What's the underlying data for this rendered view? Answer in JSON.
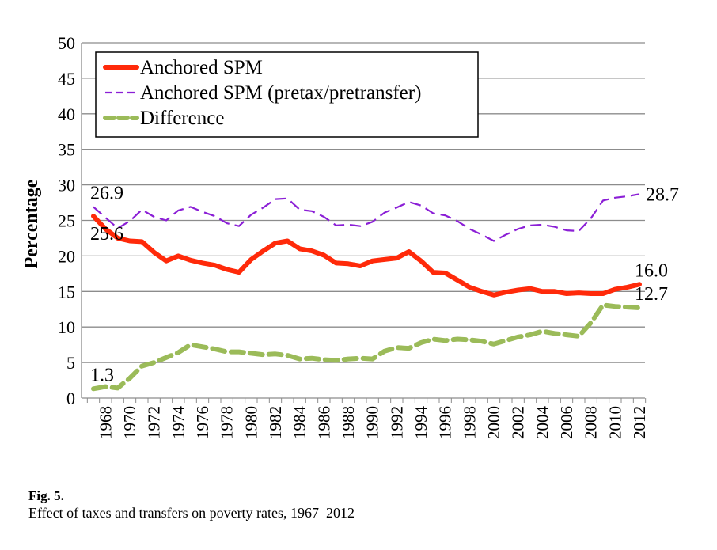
{
  "chart_data": {
    "type": "line",
    "title": "",
    "xlabel": "",
    "ylabel": "Percentage",
    "ylim": [
      0,
      50
    ],
    "yticks": [
      0,
      5,
      10,
      15,
      20,
      25,
      30,
      35,
      40,
      45,
      50
    ],
    "x": [
      1967,
      1968,
      1969,
      1970,
      1971,
      1972,
      1973,
      1974,
      1975,
      1976,
      1977,
      1978,
      1979,
      1980,
      1981,
      1982,
      1983,
      1984,
      1985,
      1986,
      1987,
      1988,
      1989,
      1990,
      1991,
      1992,
      1993,
      1994,
      1995,
      1996,
      1997,
      1998,
      1999,
      2000,
      2001,
      2002,
      2003,
      2004,
      2005,
      2006,
      2007,
      2008,
      2009,
      2010,
      2011,
      2012
    ],
    "xticks": [
      "1968",
      "1970",
      "1972",
      "1974",
      "1976",
      "1978",
      "1980",
      "1982",
      "1984",
      "1986",
      "1988",
      "1990",
      "1992",
      "1994",
      "1996",
      "1998",
      "2000",
      "2002",
      "2004",
      "2006",
      "2008",
      "2010",
      "2012"
    ],
    "grid": true,
    "legend_position": "top-left",
    "series": [
      {
        "name": "Anchored SPM",
        "color": "#ff2a0a",
        "style": "solid",
        "values": [
          25.6,
          23.8,
          22.5,
          22.1,
          22.0,
          20.5,
          19.3,
          20.0,
          19.4,
          19.0,
          18.7,
          18.1,
          17.7,
          19.5,
          20.7,
          21.8,
          22.1,
          21.0,
          20.7,
          20.1,
          19.0,
          18.9,
          18.6,
          19.3,
          19.5,
          19.7,
          20.6,
          19.3,
          17.7,
          17.6,
          16.6,
          15.6,
          15.0,
          14.5,
          14.9,
          15.2,
          15.4,
          15.0,
          15.0,
          14.7,
          14.8,
          14.7,
          14.7,
          15.3,
          15.6,
          16.0
        ]
      },
      {
        "name": "Anchored SPM (pretax/pretransfer)",
        "color": "#8b1fd6",
        "style": "dashed",
        "values": [
          26.9,
          25.4,
          23.9,
          24.9,
          26.5,
          25.5,
          25.0,
          26.4,
          26.9,
          26.2,
          25.6,
          24.6,
          24.2,
          25.8,
          26.8,
          28.0,
          28.1,
          26.5,
          26.3,
          25.5,
          24.3,
          24.4,
          24.2,
          24.8,
          26.1,
          26.8,
          27.6,
          27.1,
          26.0,
          25.7,
          24.9,
          23.8,
          23.0,
          22.1,
          23.0,
          23.8,
          24.3,
          24.4,
          24.1,
          23.6,
          23.5,
          25.3,
          27.8,
          28.2,
          28.4,
          28.7
        ]
      },
      {
        "name": "Difference",
        "color": "#9bbb59",
        "style": "dashed-thick",
        "values": [
          1.3,
          1.6,
          1.4,
          2.8,
          4.5,
          5.0,
          5.7,
          6.4,
          7.5,
          7.2,
          6.9,
          6.5,
          6.5,
          6.3,
          6.1,
          6.2,
          6.0,
          5.5,
          5.6,
          5.4,
          5.3,
          5.5,
          5.6,
          5.5,
          6.6,
          7.1,
          7.0,
          7.8,
          8.3,
          8.1,
          8.3,
          8.2,
          8.0,
          7.6,
          8.1,
          8.6,
          8.9,
          9.4,
          9.1,
          8.9,
          8.7,
          10.6,
          13.1,
          12.9,
          12.8,
          12.7
        ]
      }
    ],
    "data_labels": [
      {
        "text": "26.9",
        "series": 1,
        "index": 0,
        "position": "above-right"
      },
      {
        "text": "25.6",
        "series": 0,
        "index": 0,
        "position": "below-right"
      },
      {
        "text": "1.3",
        "series": 2,
        "index": 0,
        "position": "above-right"
      },
      {
        "text": "28.7",
        "series": 1,
        "index": 45,
        "position": "right"
      },
      {
        "text": "16.0",
        "series": 0,
        "index": 45,
        "position": "above-right"
      },
      {
        "text": "12.7",
        "series": 2,
        "index": 45,
        "position": "above-right"
      }
    ]
  },
  "caption": {
    "label": "Fig. 5.",
    "text": "Effect of taxes and transfers on poverty rates, 1967–2012"
  }
}
